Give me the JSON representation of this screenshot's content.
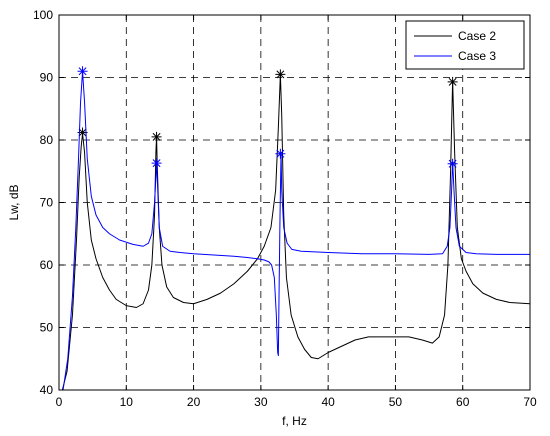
{
  "chart_data": {
    "type": "line",
    "xlabel": "f, Hz",
    "ylabel": "Lw, dB",
    "xlim": [
      0,
      70
    ],
    "ylim": [
      40,
      100
    ],
    "xticks": [
      0,
      10,
      20,
      30,
      40,
      50,
      60,
      70
    ],
    "yticks": [
      40,
      50,
      60,
      70,
      80,
      90,
      100
    ],
    "grid": true,
    "grid_style": "dashed",
    "legend_position": "top-right",
    "series": [
      {
        "name": "Case 2",
        "color": "#000000",
        "marker": "asterisk",
        "points": [
          [
            0.5,
            40
          ],
          [
            1.2,
            43
          ],
          [
            2.0,
            52
          ],
          [
            2.6,
            64
          ],
          [
            3.0,
            74
          ],
          [
            3.3,
            79
          ],
          [
            3.5,
            81
          ],
          [
            3.8,
            78
          ],
          [
            4.2,
            70
          ],
          [
            4.8,
            64
          ],
          [
            5.5,
            61
          ],
          [
            6.5,
            58
          ],
          [
            7.5,
            56
          ],
          [
            8.5,
            54.5
          ],
          [
            10,
            53.5
          ],
          [
            11.5,
            53.2
          ],
          [
            12.5,
            53.8
          ],
          [
            13.3,
            56
          ],
          [
            13.8,
            60
          ],
          [
            14.2,
            68
          ],
          [
            14.4,
            78
          ],
          [
            14.5,
            80.5
          ],
          [
            14.6,
            76
          ],
          [
            14.9,
            66
          ],
          [
            15.3,
            60
          ],
          [
            16,
            56.5
          ],
          [
            17,
            54.8
          ],
          [
            18.5,
            54
          ],
          [
            20,
            53.8
          ],
          [
            22,
            54.5
          ],
          [
            24,
            55.5
          ],
          [
            26,
            57
          ],
          [
            28,
            59
          ],
          [
            29.5,
            61
          ],
          [
            30.5,
            63
          ],
          [
            31.5,
            66
          ],
          [
            32.2,
            72
          ],
          [
            32.6,
            82
          ],
          [
            32.9,
            90.5
          ],
          [
            33.1,
            84
          ],
          [
            33.4,
            68
          ],
          [
            33.8,
            58
          ],
          [
            34.5,
            52
          ],
          [
            35.5,
            48.5
          ],
          [
            36.5,
            46.5
          ],
          [
            37.5,
            45.2
          ],
          [
            38.5,
            45
          ],
          [
            40,
            46
          ],
          [
            42,
            47
          ],
          [
            44,
            48
          ],
          [
            46,
            48.5
          ],
          [
            48,
            48.5
          ],
          [
            50,
            48.5
          ],
          [
            52,
            48.5
          ],
          [
            54,
            48
          ],
          [
            55.5,
            47.5
          ],
          [
            56.5,
            48.5
          ],
          [
            57.3,
            52
          ],
          [
            57.8,
            60
          ],
          [
            58.2,
            75
          ],
          [
            58.5,
            89.5
          ],
          [
            58.8,
            78
          ],
          [
            59.2,
            66
          ],
          [
            59.8,
            61
          ],
          [
            60.5,
            59
          ],
          [
            61.5,
            57
          ],
          [
            63,
            55.5
          ],
          [
            65,
            54.5
          ],
          [
            67,
            54
          ],
          [
            70,
            53.8
          ]
        ],
        "peaks": [
          [
            3.5,
            81.2
          ],
          [
            14.5,
            80.5
          ],
          [
            32.9,
            90.5
          ],
          [
            58.5,
            89.3
          ]
        ]
      },
      {
        "name": "Case 3",
        "color": "#0000ff",
        "marker": "asterisk",
        "points": [
          [
            0.6,
            40
          ],
          [
            1.3,
            45
          ],
          [
            2.0,
            55
          ],
          [
            2.5,
            66
          ],
          [
            2.9,
            77
          ],
          [
            3.2,
            86
          ],
          [
            3.5,
            91
          ],
          [
            3.8,
            86
          ],
          [
            4.2,
            77
          ],
          [
            4.8,
            71
          ],
          [
            5.5,
            68
          ],
          [
            6.5,
            66
          ],
          [
            7.5,
            65
          ],
          [
            9,
            64
          ],
          [
            11,
            63.3
          ],
          [
            12.5,
            63
          ],
          [
            13.3,
            63.5
          ],
          [
            13.8,
            65
          ],
          [
            14.2,
            70
          ],
          [
            14.4,
            74
          ],
          [
            14.5,
            76.5
          ],
          [
            14.6,
            74
          ],
          [
            14.9,
            66
          ],
          [
            15.4,
            63
          ],
          [
            16.5,
            62.2
          ],
          [
            18,
            62
          ],
          [
            20,
            61.8
          ],
          [
            23,
            61.6
          ],
          [
            26,
            61.4
          ],
          [
            28,
            61.2
          ],
          [
            29.5,
            61
          ],
          [
            30.5,
            60.8
          ],
          [
            31.2,
            60.5
          ],
          [
            31.6,
            60
          ],
          [
            32.0,
            58
          ],
          [
            32.3,
            52
          ],
          [
            32.5,
            46
          ],
          [
            32.6,
            45.5
          ],
          [
            32.7,
            55
          ],
          [
            32.85,
            68
          ],
          [
            33.0,
            78
          ],
          [
            33.1,
            72
          ],
          [
            33.4,
            66
          ],
          [
            33.9,
            63.5
          ],
          [
            34.6,
            62.5
          ],
          [
            36,
            62.2
          ],
          [
            40,
            62
          ],
          [
            45,
            61.8
          ],
          [
            50,
            61.8
          ],
          [
            55,
            61.7
          ],
          [
            57,
            61.8
          ],
          [
            57.7,
            63
          ],
          [
            58.1,
            66
          ],
          [
            58.35,
            72
          ],
          [
            58.5,
            76.5
          ],
          [
            58.7,
            72
          ],
          [
            59.0,
            66
          ],
          [
            59.5,
            63
          ],
          [
            60.5,
            62
          ],
          [
            62,
            61.8
          ],
          [
            65,
            61.7
          ],
          [
            70,
            61.7
          ]
        ],
        "peaks": [
          [
            3.5,
            91
          ],
          [
            14.5,
            76.3
          ],
          [
            32.9,
            77.8
          ],
          [
            58.5,
            76.2
          ]
        ]
      }
    ]
  }
}
